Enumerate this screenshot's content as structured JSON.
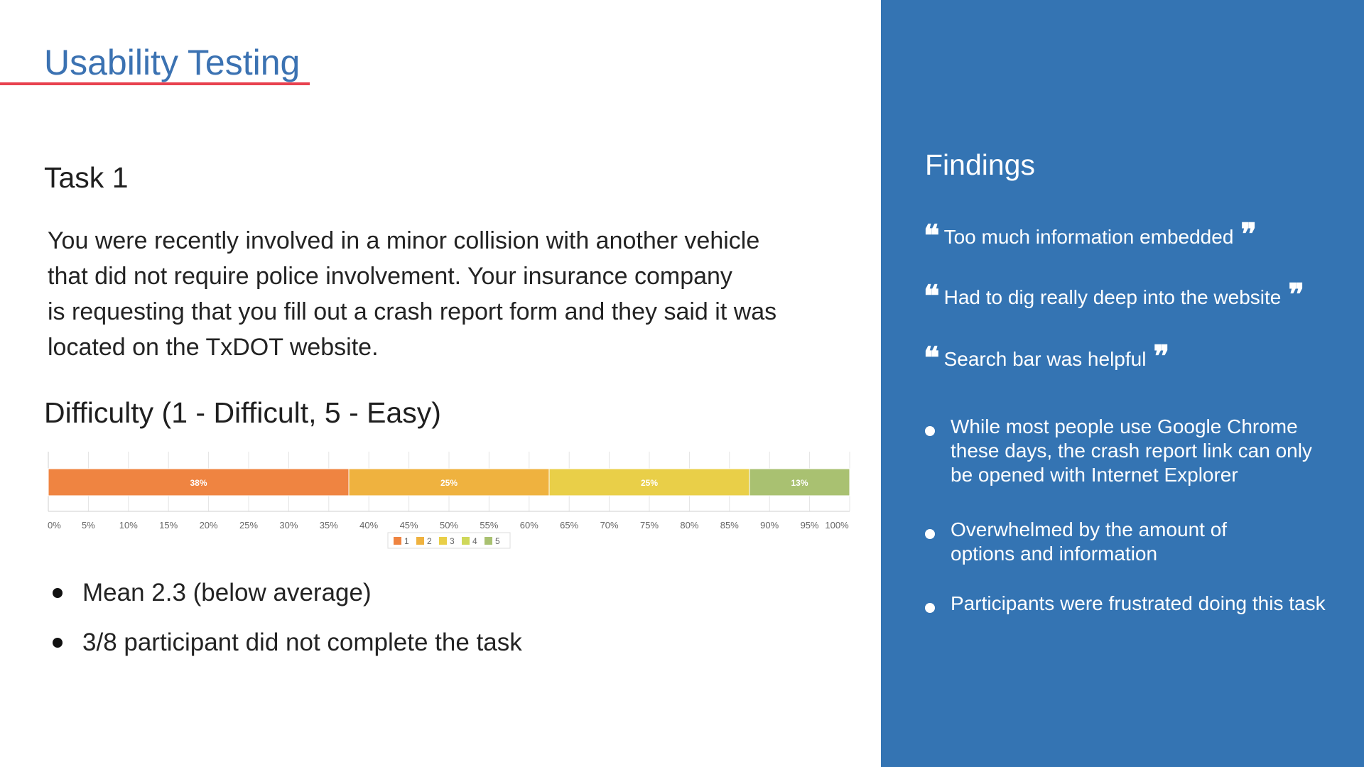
{
  "title": "Usability Testing",
  "task": {
    "heading": "Task 1",
    "description_lines": [
      "You were recently involved in a minor collision with another vehicle",
      "that did not require police involvement. Your insurance company",
      "is requesting that you fill out a crash report form and they said it was",
      "located on the TxDOT website."
    ]
  },
  "difficulty_heading": "Difficulty (1 - Difficult, 5 - Easy)",
  "chart_data": {
    "type": "bar",
    "orientation": "horizontal-stacked-100",
    "categories": [
      "Difficulty"
    ],
    "series": [
      {
        "name": "1",
        "value": 37.5,
        "label": "38%",
        "color": "#ef8441"
      },
      {
        "name": "2",
        "value": 25,
        "label": "25%",
        "color": "#efb23f"
      },
      {
        "name": "3",
        "value": 25,
        "label": "25%",
        "color": "#e9cf48"
      },
      {
        "name": "4",
        "value": 0,
        "label": "",
        "color": "#cfd85a"
      },
      {
        "name": "5",
        "value": 12.5,
        "label": "13%",
        "color": "#a9c171"
      }
    ],
    "xlim": [
      0,
      100
    ],
    "x_ticks": [
      "0%",
      "5%",
      "10%",
      "15%",
      "20%",
      "25%",
      "30%",
      "35%",
      "40%",
      "45%",
      "50%",
      "55%",
      "60%",
      "65%",
      "70%",
      "75%",
      "80%",
      "85%",
      "90%",
      "95%",
      "100%"
    ],
    "grid": true,
    "legend": "bottom-center"
  },
  "bullets": [
    "Mean 2.3 (below average)",
    "3/8 participant did not complete the task"
  ],
  "panel": {
    "bg_color": "#3474b3",
    "heading": "Findings",
    "open_quote": "❝",
    "close_quote": "❞",
    "quotes": [
      "Too much information embedded",
      "Had to dig really deep into the website",
      "Search bar was helpful"
    ],
    "findings": [
      [
        "While most people use Google Chrome",
        "these days, the crash report link can only",
        "be opened with Internet Explorer"
      ],
      [
        "Overwhelmed by the amount of",
        "options and information"
      ],
      [
        "Participants were frustrated doing this task"
      ]
    ]
  }
}
